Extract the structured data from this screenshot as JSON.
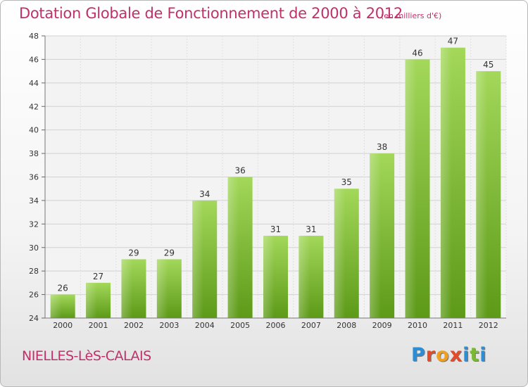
{
  "header": {
    "title": "Dotation Globale de Fonctionnement de 2000 à 2012",
    "unit": "(en milliers d'€)"
  },
  "footer": {
    "commune": "NIELLES-LèS-CALAIS",
    "logo_letters": [
      {
        "ch": "P",
        "color": "#2a8fd6"
      },
      {
        "ch": "r",
        "color": "#e34b2a"
      },
      {
        "ch": "o",
        "color": "#f0a020"
      },
      {
        "ch": "x",
        "color": "#e34b2a"
      },
      {
        "ch": "i",
        "color": "#2a8fd6"
      },
      {
        "ch": "t",
        "color": "#7cb832"
      },
      {
        "ch": "i",
        "color": "#2a8fd6"
      }
    ]
  },
  "chart_data": {
    "type": "bar",
    "categories": [
      "2000",
      "2001",
      "2002",
      "2003",
      "2004",
      "2005",
      "2006",
      "2007",
      "2008",
      "2009",
      "2010",
      "2011",
      "2012"
    ],
    "values": [
      26,
      27,
      29,
      29,
      34,
      36,
      31,
      31,
      35,
      38,
      46,
      47,
      45
    ],
    "data_labels": [
      "26",
      "27",
      "29",
      "29",
      "34",
      "36",
      "31",
      "31",
      "35",
      "38",
      "46",
      "47",
      "45"
    ],
    "yticks": [
      24,
      26,
      28,
      30,
      32,
      34,
      36,
      38,
      40,
      42,
      44,
      46,
      48
    ],
    "ylim": [
      24,
      48
    ],
    "grid": true,
    "bar_color": "#7cbd2e"
  }
}
